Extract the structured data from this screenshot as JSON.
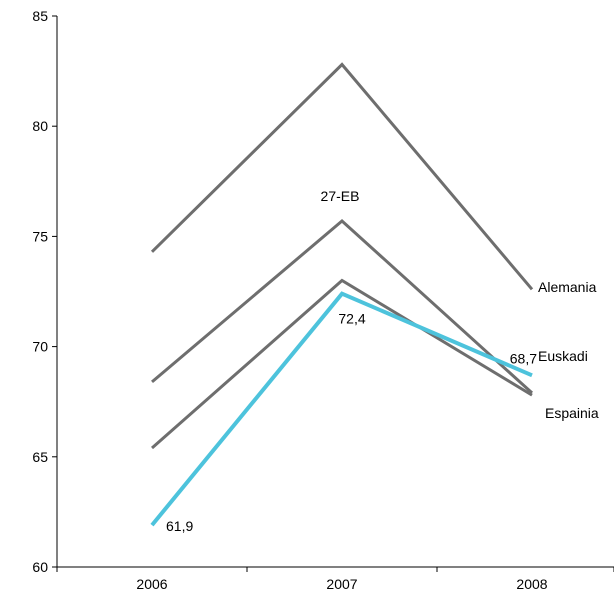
{
  "chart_data": {
    "type": "line",
    "title": "",
    "xlabel": "",
    "ylabel": "",
    "categories": [
      "2006",
      "2007",
      "2008"
    ],
    "ylim": [
      60,
      85
    ],
    "yticks": [
      60,
      65,
      70,
      75,
      80,
      85
    ],
    "grid": false,
    "legend": "none",
    "series": [
      {
        "name": "Alemania",
        "values": [
          74.3,
          82.8,
          72.6
        ],
        "color": "#6e6e6e"
      },
      {
        "name": "27-EB",
        "values": [
          68.4,
          75.7,
          67.9
        ],
        "color": "#6e6e6e"
      },
      {
        "name": "Espainia",
        "values": [
          65.4,
          73.0,
          67.8
        ],
        "color": "#6e6e6e"
      },
      {
        "name": "Euskadi",
        "values": [
          61.9,
          72.4,
          68.7
        ],
        "color": "#4dc3dc"
      }
    ],
    "data_labels": [
      {
        "series": "Euskadi",
        "category": "2006",
        "text": "61,9"
      },
      {
        "series": "Euskadi",
        "category": "2007",
        "text": "72,4"
      },
      {
        "series": "Euskadi",
        "category": "2008",
        "text": "68,7"
      }
    ]
  }
}
